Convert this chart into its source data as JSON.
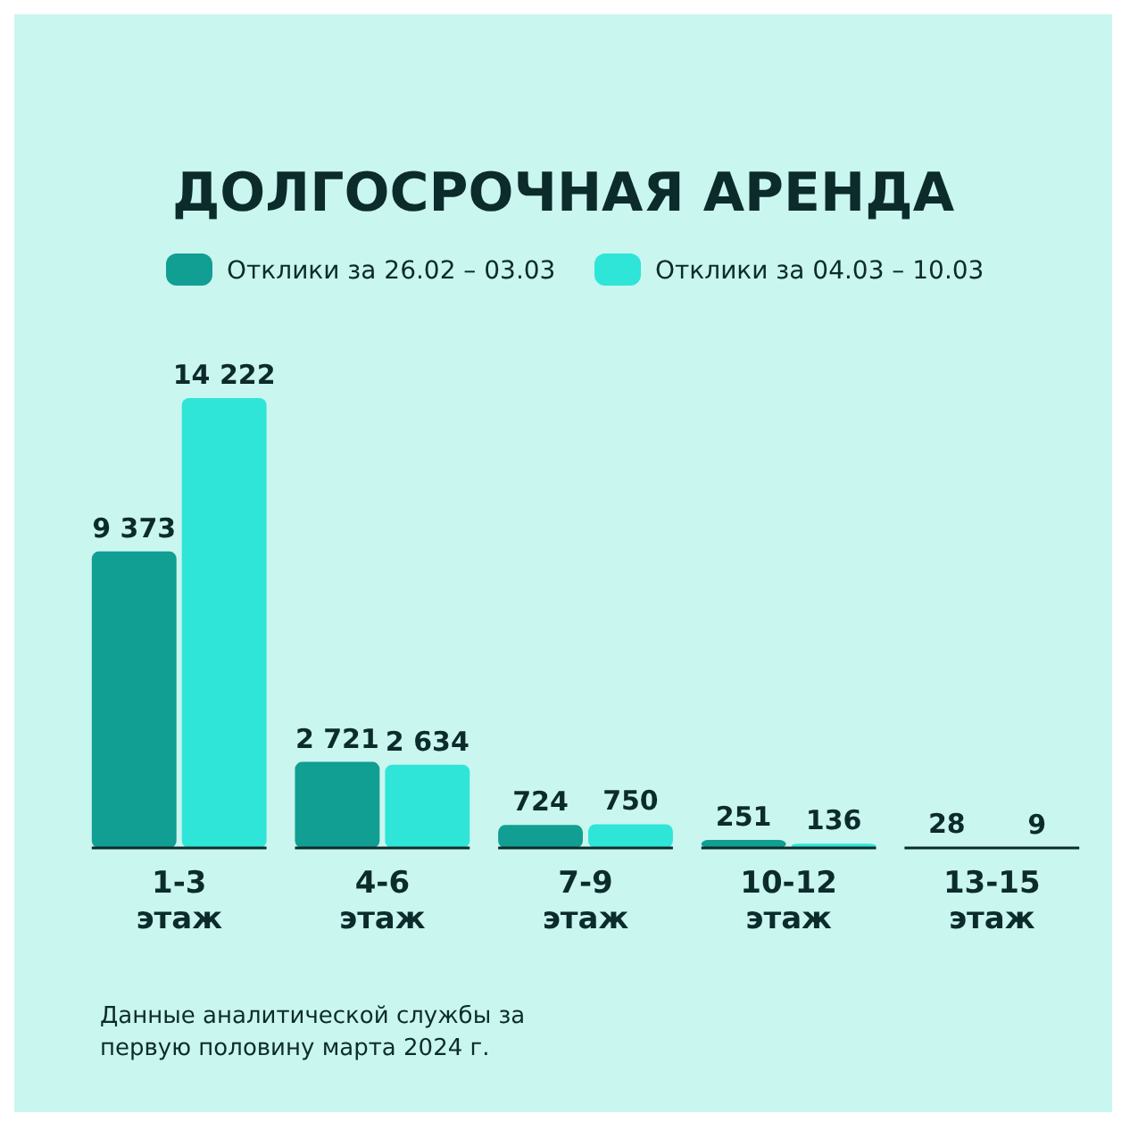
{
  "chart_data": {
    "type": "bar",
    "title": "ДОЛГОСРОЧНАЯ АРЕНДА",
    "categories": [
      "1-3 этаж",
      "4-6 этаж",
      "7-9 этаж",
      "10-12 этаж",
      "13-15 этаж"
    ],
    "legend": "top",
    "series": [
      {
        "name": "Отклики за 26.02 – 03.03",
        "color": "#119e93",
        "values": [
          9373,
          2721,
          724,
          251,
          28
        ],
        "value_labels": [
          "9 373",
          "2 721",
          "724",
          "251",
          "28"
        ]
      },
      {
        "name": "Отклики за 04.03 – 10.03",
        "color": "#2ee5d8",
        "values": [
          14222,
          2634,
          750,
          136,
          9
        ],
        "value_labels": [
          "14 222",
          "2 634",
          "750",
          "136",
          "9"
        ]
      }
    ],
    "annotations": [
      "Данные аналитической службы за первую половину марта 2024 г."
    ]
  }
}
